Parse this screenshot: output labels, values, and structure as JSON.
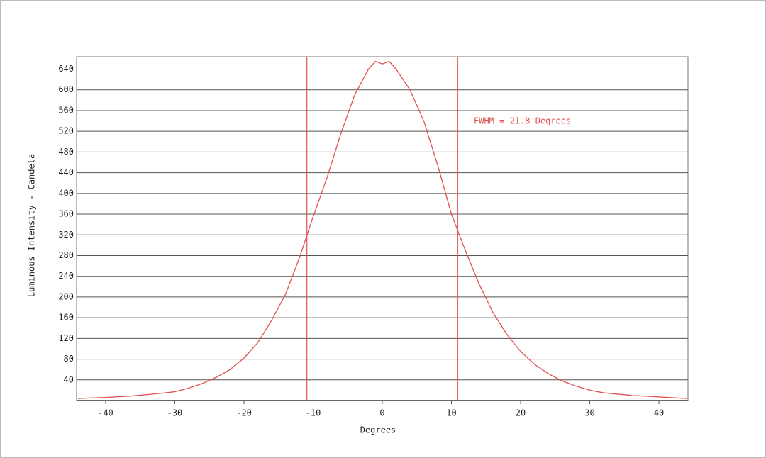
{
  "chart_data": {
    "type": "line",
    "x_label": "Degrees",
    "y_label": "Luminous Intensity - Candela",
    "annotation": "FWHM = 21.8 Degrees",
    "x": [
      -44,
      -40,
      -36,
      -32,
      -30,
      -28,
      -26,
      -24,
      -22,
      -20,
      -18,
      -16,
      -14,
      -12,
      -10,
      -8,
      -6,
      -4,
      -2,
      -1,
      0,
      1,
      2,
      4,
      6,
      8,
      10,
      12,
      14,
      16,
      18,
      20,
      22,
      24,
      26,
      28,
      30,
      32,
      36,
      40,
      44
    ],
    "series": [
      {
        "color": "#e05050",
        "values": [
          4,
          6,
          9,
          14,
          17,
          24,
          33,
          45,
          60,
          82,
          112,
          155,
          205,
          275,
          355,
          430,
          515,
          590,
          640,
          655,
          650,
          655,
          640,
          600,
          540,
          455,
          360,
          290,
          225,
          170,
          128,
          95,
          70,
          52,
          38,
          28,
          20,
          15,
          10,
          7,
          4
        ]
      }
    ],
    "vlines": [
      -10.9,
      10.9
    ],
    "xlim": [
      -44.2,
      44.2
    ],
    "ylim": [
      0,
      664
    ],
    "xticks": [
      -40,
      -30,
      -20,
      -10,
      0,
      10,
      20,
      30,
      40
    ],
    "yticks": [
      40,
      80,
      120,
      160,
      200,
      240,
      280,
      320,
      360,
      400,
      440,
      480,
      520,
      560,
      600,
      640
    ],
    "grid": true
  }
}
